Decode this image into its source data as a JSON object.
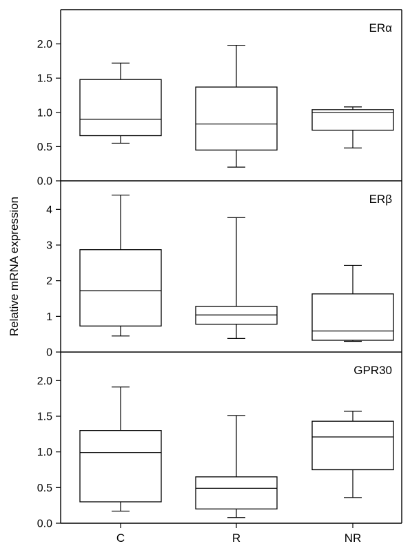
{
  "chart_data": {
    "type": "box",
    "ylabel": "Relative mRNA expression",
    "categories": [
      "C",
      "R",
      "NR"
    ],
    "panels": [
      {
        "label": "ERα",
        "ylim": [
          0,
          2.5
        ],
        "yticks": [
          "0.0",
          "0.5",
          "1.0",
          "1.5",
          "2.0"
        ],
        "ytick_values": [
          0,
          0.5,
          1.0,
          1.5,
          2.0
        ],
        "boxes": [
          {
            "category": "C",
            "min": 0.55,
            "q1": 0.66,
            "median": 0.9,
            "q3": 1.48,
            "max": 1.72
          },
          {
            "category": "R",
            "min": 0.2,
            "q1": 0.45,
            "median": 0.83,
            "q3": 1.37,
            "max": 1.98
          },
          {
            "category": "NR",
            "min": 0.48,
            "q1": 0.74,
            "median": 1.0,
            "q3": 1.04,
            "max": 1.08
          }
        ]
      },
      {
        "label": "ERβ",
        "ylim": [
          0,
          4.8
        ],
        "yticks": [
          "0",
          "1",
          "2",
          "3",
          "4"
        ],
        "ytick_values": [
          0,
          1,
          2,
          3,
          4
        ],
        "boxes": [
          {
            "category": "C",
            "min": 0.45,
            "q1": 0.73,
            "median": 1.72,
            "q3": 2.87,
            "max": 4.4
          },
          {
            "category": "R",
            "min": 0.38,
            "q1": 0.78,
            "median": 1.04,
            "q3": 1.28,
            "max": 3.77
          },
          {
            "category": "NR",
            "min": 0.3,
            "q1": 0.33,
            "median": 0.59,
            "q3": 1.63,
            "max": 2.43
          }
        ]
      },
      {
        "label": "GPR30",
        "ylim": [
          0,
          2.4
        ],
        "yticks": [
          "0.0",
          "0.5",
          "1.0",
          "1.5",
          "2.0"
        ],
        "ytick_values": [
          0,
          0.5,
          1.0,
          1.5,
          2.0
        ],
        "boxes": [
          {
            "category": "C",
            "min": 0.17,
            "q1": 0.3,
            "median": 0.99,
            "q3": 1.3,
            "max": 1.91
          },
          {
            "category": "R",
            "min": 0.08,
            "q1": 0.2,
            "median": 0.49,
            "q3": 0.65,
            "max": 1.51
          },
          {
            "category": "NR",
            "min": 0.36,
            "q1": 0.75,
            "median": 1.21,
            "q3": 1.43,
            "max": 1.57
          }
        ]
      }
    ]
  }
}
